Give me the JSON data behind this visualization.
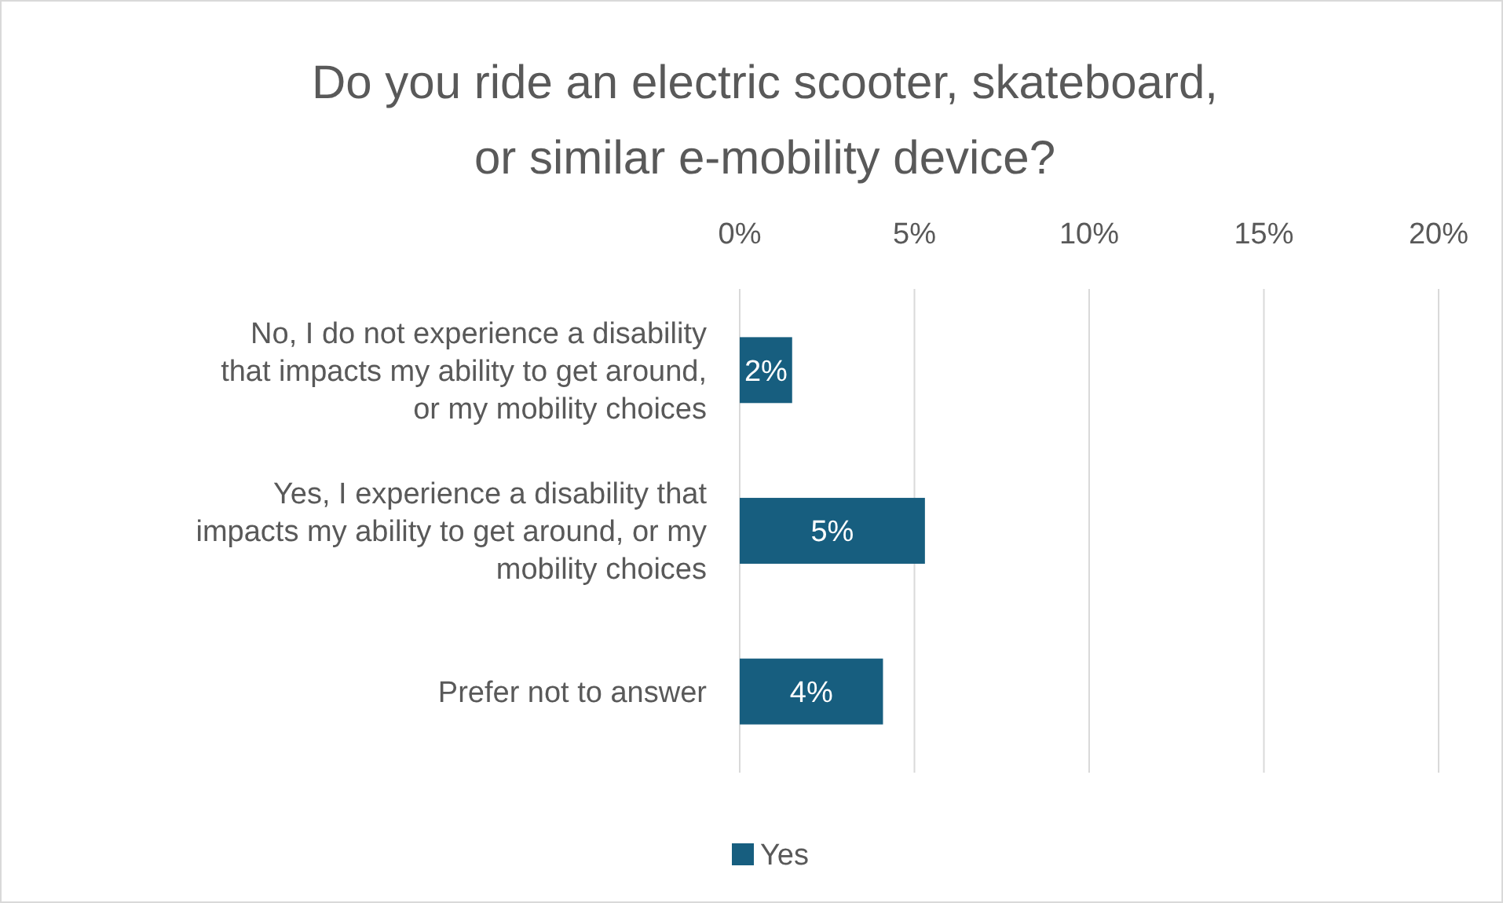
{
  "chart_data": {
    "type": "bar",
    "orientation": "horizontal",
    "title": "Do you ride an electric scooter, skateboard, or similar e-mobility device?",
    "categories": [
      "No, I do not experience a disability that impacts my ability to get around, or my mobility choices",
      "Yes, I experience a disability that impacts my ability to get around, or my mobility choices",
      "Prefer not to answer"
    ],
    "series": [
      {
        "name": "Yes",
        "color": "#175e7f",
        "values": [
          1.5,
          5.3,
          4.1
        ],
        "value_labels": [
          "2%",
          "5%",
          "4%"
        ]
      }
    ],
    "xlim": [
      0,
      20
    ],
    "xticks": [
      {
        "value": 0,
        "label": "0%"
      },
      {
        "value": 5,
        "label": "5%"
      },
      {
        "value": 10,
        "label": "10%"
      },
      {
        "value": 15,
        "label": "15%"
      },
      {
        "value": 20,
        "label": "20%"
      }
    ],
    "grid": "x",
    "legend": "bottom"
  }
}
